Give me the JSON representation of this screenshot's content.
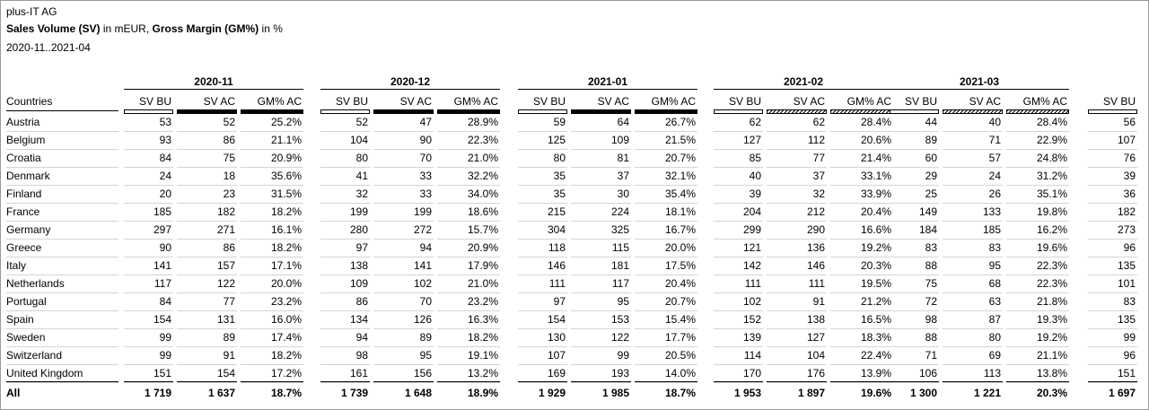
{
  "header": {
    "company": "plus-IT AG",
    "title_sv_bold": "Sales Volume (SV)",
    "title_sv_rest": " in mEUR, ",
    "title_gm_bold": "Gross Margin (GM%)",
    "title_gm_rest": " in %",
    "period": "2020-11..2021-04"
  },
  "chart_data": {
    "type": "table",
    "row_header": "Countries",
    "months": [
      {
        "label": "2020-11",
        "scenario": "AC",
        "columns": [
          "SV BU",
          "SV AC",
          "GM% AC"
        ]
      },
      {
        "label": "2020-12",
        "scenario": "AC",
        "columns": [
          "SV BU",
          "SV AC",
          "GM% AC"
        ]
      },
      {
        "label": "2021-01",
        "scenario": "AC",
        "columns": [
          "SV BU",
          "SV AC",
          "GM% AC"
        ]
      },
      {
        "label": "2021-02",
        "scenario": "FC",
        "columns": [
          "SV BU",
          "SV AC",
          "GM% AC"
        ]
      },
      {
        "label": "2021-03",
        "scenario": "FC",
        "columns": [
          "SV BU",
          "SV AC",
          "GM% AC"
        ]
      },
      {
        "label": "",
        "scenario": "AC",
        "columns": [
          "SV BU"
        ]
      }
    ],
    "rows": [
      {
        "country": "Austria",
        "values": [
          "53",
          "52",
          "25.2%",
          "52",
          "47",
          "28.9%",
          "59",
          "64",
          "26.7%",
          "62",
          "62",
          "28.4%",
          "44",
          "40",
          "28.4%",
          "56"
        ]
      },
      {
        "country": "Belgium",
        "values": [
          "93",
          "86",
          "21.1%",
          "104",
          "90",
          "22.3%",
          "125",
          "109",
          "21.5%",
          "127",
          "112",
          "20.6%",
          "89",
          "71",
          "22.9%",
          "107"
        ]
      },
      {
        "country": "Croatia",
        "values": [
          "84",
          "75",
          "20.9%",
          "80",
          "70",
          "21.0%",
          "80",
          "81",
          "20.7%",
          "85",
          "77",
          "21.4%",
          "60",
          "57",
          "24.8%",
          "76"
        ]
      },
      {
        "country": "Denmark",
        "values": [
          "24",
          "18",
          "35.6%",
          "41",
          "33",
          "32.2%",
          "35",
          "37",
          "32.1%",
          "40",
          "37",
          "33.1%",
          "29",
          "24",
          "31.2%",
          "39"
        ]
      },
      {
        "country": "Finland",
        "values": [
          "20",
          "23",
          "31.5%",
          "32",
          "33",
          "34.0%",
          "35",
          "30",
          "35.4%",
          "39",
          "32",
          "33.9%",
          "25",
          "26",
          "35.1%",
          "36"
        ]
      },
      {
        "country": "France",
        "values": [
          "185",
          "182",
          "18.2%",
          "199",
          "199",
          "18.6%",
          "215",
          "224",
          "18.1%",
          "204",
          "212",
          "20.4%",
          "149",
          "133",
          "19.8%",
          "182"
        ]
      },
      {
        "country": "Germany",
        "values": [
          "297",
          "271",
          "16.1%",
          "280",
          "272",
          "15.7%",
          "304",
          "325",
          "16.7%",
          "299",
          "290",
          "16.6%",
          "184",
          "185",
          "16.2%",
          "273"
        ]
      },
      {
        "country": "Greece",
        "values": [
          "90",
          "86",
          "18.2%",
          "97",
          "94",
          "20.9%",
          "118",
          "115",
          "20.0%",
          "121",
          "136",
          "19.2%",
          "83",
          "83",
          "19.6%",
          "96"
        ]
      },
      {
        "country": "Italy",
        "values": [
          "141",
          "157",
          "17.1%",
          "138",
          "141",
          "17.9%",
          "146",
          "181",
          "17.5%",
          "142",
          "146",
          "20.3%",
          "88",
          "95",
          "22.3%",
          "135"
        ]
      },
      {
        "country": "Netherlands",
        "values": [
          "117",
          "122",
          "20.0%",
          "109",
          "102",
          "21.0%",
          "111",
          "117",
          "20.4%",
          "111",
          "111",
          "19.5%",
          "75",
          "68",
          "22.3%",
          "101"
        ]
      },
      {
        "country": "Portugal",
        "values": [
          "84",
          "77",
          "23.2%",
          "86",
          "70",
          "23.2%",
          "97",
          "95",
          "20.7%",
          "102",
          "91",
          "21.2%",
          "72",
          "63",
          "21.8%",
          "83"
        ]
      },
      {
        "country": "Spain",
        "values": [
          "154",
          "131",
          "16.0%",
          "134",
          "126",
          "16.3%",
          "154",
          "153",
          "15.4%",
          "152",
          "138",
          "16.5%",
          "98",
          "87",
          "19.3%",
          "135"
        ]
      },
      {
        "country": "Sweden",
        "values": [
          "99",
          "89",
          "17.4%",
          "94",
          "89",
          "18.2%",
          "130",
          "122",
          "17.7%",
          "139",
          "127",
          "18.3%",
          "88",
          "80",
          "19.2%",
          "99"
        ]
      },
      {
        "country": "Switzerland",
        "values": [
          "99",
          "91",
          "18.2%",
          "98",
          "95",
          "19.1%",
          "107",
          "99",
          "20.5%",
          "114",
          "104",
          "22.4%",
          "71",
          "69",
          "21.1%",
          "96"
        ]
      },
      {
        "country": "United Kingdom",
        "values": [
          "151",
          "154",
          "17.2%",
          "161",
          "156",
          "13.2%",
          "169",
          "193",
          "14.0%",
          "170",
          "176",
          "13.9%",
          "106",
          "113",
          "13.8%",
          "151"
        ]
      }
    ],
    "total": {
      "country": "All",
      "values": [
        "1 719",
        "1 637",
        "18.7%",
        "1 739",
        "1 648",
        "18.9%",
        "1 929",
        "1 985",
        "18.7%",
        "1 953",
        "1 897",
        "19.6%",
        "1 300",
        "1 221",
        "20.3%",
        "1 697"
      ]
    }
  }
}
